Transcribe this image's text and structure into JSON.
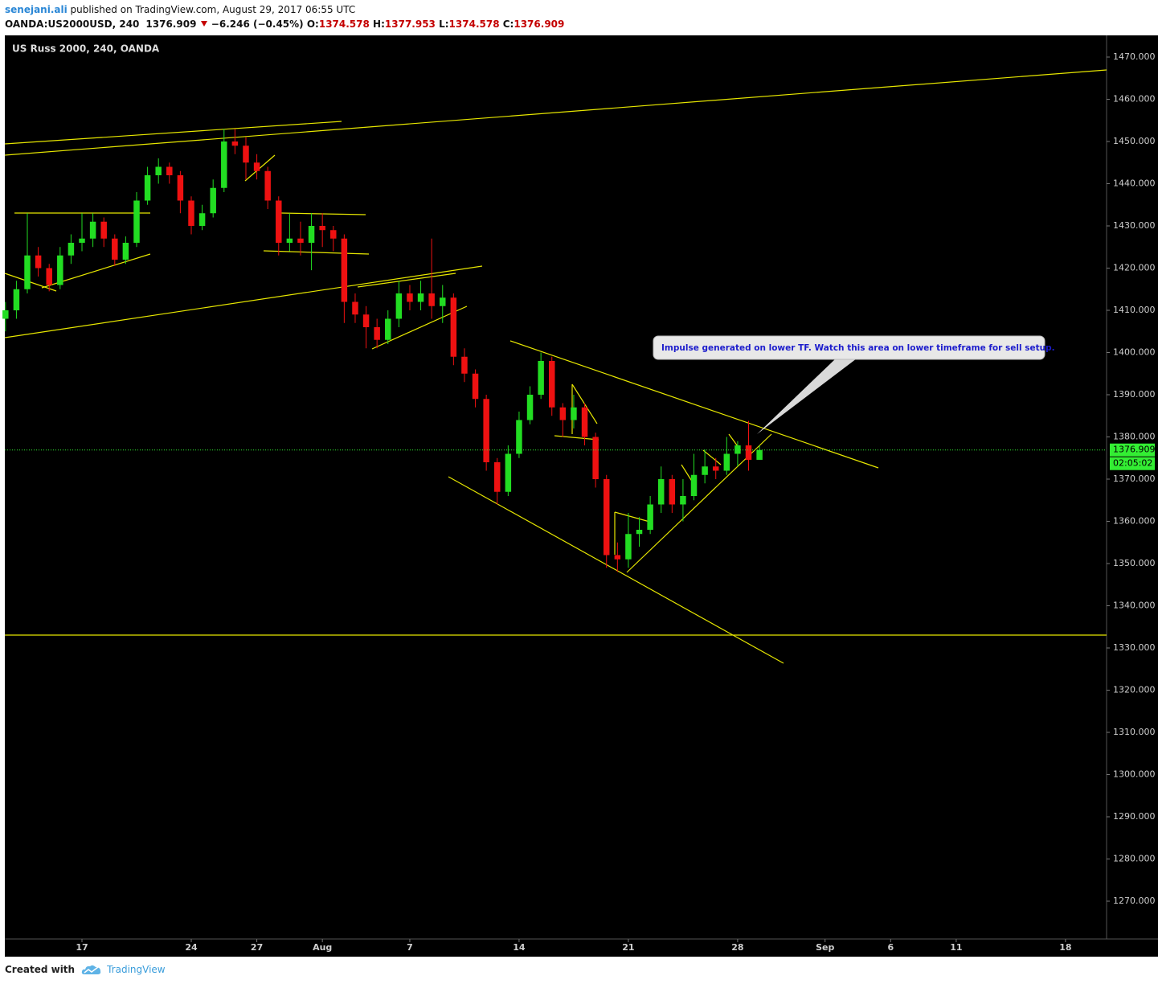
{
  "header": {
    "author": "senejani.ali",
    "published": "published on TradingView.com, August 29, 2017 06:55 UTC"
  },
  "footer": {
    "created_with": "Created with",
    "brand": "TradingView"
  },
  "chart_data": {
    "type": "candlestick",
    "title": "US Russ 2000, 240, OANDA",
    "symbol": "OANDA:US2000USD, 240",
    "change": {
      "value": -6.246,
      "label": "−6.246"
    },
    "change_percent": {
      "value": -0.45,
      "label": "(−0.45%)"
    },
    "ohlc_labels": [
      "O:",
      "H:",
      "L:",
      "C:"
    ],
    "countdown": "02:05:02",
    "annotation": "Impulse generated on lower TF. Watch this area on lower timeframe for sell setup.",
    "up_color": "#22dd22",
    "down_color": "#ee1111",
    "last_price_color": "#33ee33",
    "grid": false,
    "x": [
      -3.5,
      -3,
      -2.5,
      -2,
      -1.5,
      -1,
      -0.5,
      0,
      0.5,
      1,
      1.5,
      2,
      2.5,
      3,
      3.5,
      4,
      4.5,
      5,
      5.5,
      6,
      6.5,
      7,
      7.5,
      8,
      8.5,
      9,
      9.5,
      10,
      10.5,
      11,
      11.5,
      12,
      12.5,
      13,
      13.5,
      14,
      14.5,
      15,
      15.5,
      16,
      16.5,
      17,
      17.5,
      18,
      18.5,
      19,
      19.5,
      20,
      20.5,
      21,
      21.5,
      22,
      22.5,
      23,
      23.5,
      24,
      24.5,
      25,
      25.5,
      26,
      26.5,
      27,
      27.5,
      28,
      28.5,
      29,
      29.5,
      30,
      30.5,
      31
    ],
    "open": [
      1408,
      1410,
      1415,
      1423,
      1420,
      1416,
      1423,
      1426,
      1427,
      1431,
      1427,
      1422,
      1426,
      1436,
      1442,
      1444,
      1442,
      1436,
      1430,
      1433,
      1439,
      1450,
      1449,
      1445,
      1443,
      1436,
      1426,
      1427,
      1426,
      1430,
      1429,
      1427,
      1412,
      1409,
      1406,
      1403,
      1408,
      1414,
      1412,
      1414,
      1411,
      1413,
      1399,
      1395,
      1389,
      1374,
      1367,
      1376,
      1384,
      1390,
      1398,
      1387,
      1384,
      1387,
      1380,
      1370,
      1352,
      1351,
      1357,
      1358,
      1364,
      1370,
      1364,
      1366,
      1371,
      1373,
      1372,
      1376,
      1378,
      1374.578
    ],
    "high": [
      1412,
      1417,
      1433,
      1425,
      1421,
      1425,
      1428,
      1433,
      1433,
      1432,
      1428,
      1427.5,
      1438,
      1444,
      1446,
      1445,
      1443,
      1437,
      1435,
      1441,
      1453,
      1453,
      1451,
      1447,
      1444,
      1437,
      1433,
      1431,
      1433,
      1433,
      1430,
      1428,
      1414,
      1411,
      1408,
      1410,
      1417,
      1416,
      1417,
      1427,
      1416,
      1414,
      1401,
      1396,
      1390,
      1375,
      1378,
      1386,
      1392,
      1400,
      1399,
      1388,
      1390,
      1388,
      1381,
      1371,
      1355,
      1362,
      1361,
      1366,
      1373,
      1371,
      1370,
      1376,
      1377,
      1375,
      1380,
      1379,
      1383.8,
      1377.953
    ],
    "low": [
      1405,
      1408,
      1414,
      1418,
      1414.5,
      1415,
      1421,
      1424,
      1425,
      1425,
      1420.5,
      1421,
      1425,
      1435,
      1440,
      1440,
      1433,
      1428,
      1429,
      1432,
      1438,
      1447,
      1441,
      1441,
      1434,
      1423,
      1424,
      1423,
      1419.5,
      1425,
      1424,
      1407,
      1407,
      1401,
      1401,
      1402,
      1406,
      1410,
      1410,
      1408,
      1407,
      1397,
      1393,
      1387,
      1372,
      1364,
      1366,
      1375,
      1383,
      1389,
      1385,
      1380,
      1382,
      1378,
      1368,
      1349,
      1348,
      1349,
      1354,
      1357,
      1362,
      1362,
      1360,
      1365,
      1369,
      1370,
      1371,
      1373,
      1372,
      1374.578
    ],
    "close": [
      1410,
      1415,
      1423,
      1420,
      1416,
      1423,
      1426,
      1427,
      1431,
      1427,
      1422,
      1426,
      1436,
      1442,
      1444,
      1442,
      1436,
      1430,
      1433,
      1439,
      1450,
      1449,
      1445,
      1443,
      1436,
      1426,
      1427,
      1426,
      1430,
      1429,
      1427,
      1412,
      1409,
      1406,
      1403,
      1408,
      1414,
      1412,
      1414,
      1411,
      1413,
      1399,
      1395,
      1389,
      1374,
      1367,
      1376,
      1384,
      1390,
      1398,
      1387,
      1384,
      1387,
      1380,
      1370,
      1352,
      1351,
      1357,
      1358,
      1364,
      1370,
      1364,
      1366,
      1371,
      1373,
      1372,
      1376,
      1378,
      1374.578,
      1376.909
    ],
    "xlim": [
      -3.53,
      46.88
    ],
    "xticks": [
      {
        "value": 0,
        "label": "17"
      },
      {
        "value": 5,
        "label": "24"
      },
      {
        "value": 8,
        "label": "27"
      },
      {
        "value": 11,
        "label": "Aug"
      },
      {
        "value": 15,
        "label": "7"
      },
      {
        "value": 20,
        "label": "14"
      },
      {
        "value": 25,
        "label": "21"
      },
      {
        "value": 30,
        "label": "28"
      },
      {
        "value": 34,
        "label": "Sep"
      },
      {
        "value": 37,
        "label": "6"
      },
      {
        "value": 40,
        "label": "11"
      },
      {
        "value": 45,
        "label": "18"
      }
    ],
    "ylim": [
      1261.05,
      1475.14
    ],
    "yticks": [
      {
        "value": 1270,
        "label": "1270.000"
      },
      {
        "value": 1280,
        "label": "1280.000"
      },
      {
        "value": 1290,
        "label": "1290.000"
      },
      {
        "value": 1300,
        "label": "1300.000"
      },
      {
        "value": 1310,
        "label": "1310.000"
      },
      {
        "value": 1320,
        "label": "1320.000"
      },
      {
        "value": 1330,
        "label": "1330.000"
      },
      {
        "value": 1340,
        "label": "1340.000"
      },
      {
        "value": 1350,
        "label": "1350.000"
      },
      {
        "value": 1360,
        "label": "1360.000"
      },
      {
        "value": 1370,
        "label": "1370.000"
      },
      {
        "value": 1380,
        "label": "1380.000"
      },
      {
        "value": 1390,
        "label": "1390.000"
      },
      {
        "value": 1400,
        "label": "1400.000"
      },
      {
        "value": 1410,
        "label": "1410.000"
      },
      {
        "value": 1420,
        "label": "1420.000"
      },
      {
        "value": 1430,
        "label": "1430.000"
      },
      {
        "value": 1440,
        "label": "1440.000"
      },
      {
        "value": 1450,
        "label": "1450.000"
      },
      {
        "value": 1460,
        "label": "1460.000"
      },
      {
        "value": 1470,
        "label": "1470.000"
      }
    ]
  }
}
